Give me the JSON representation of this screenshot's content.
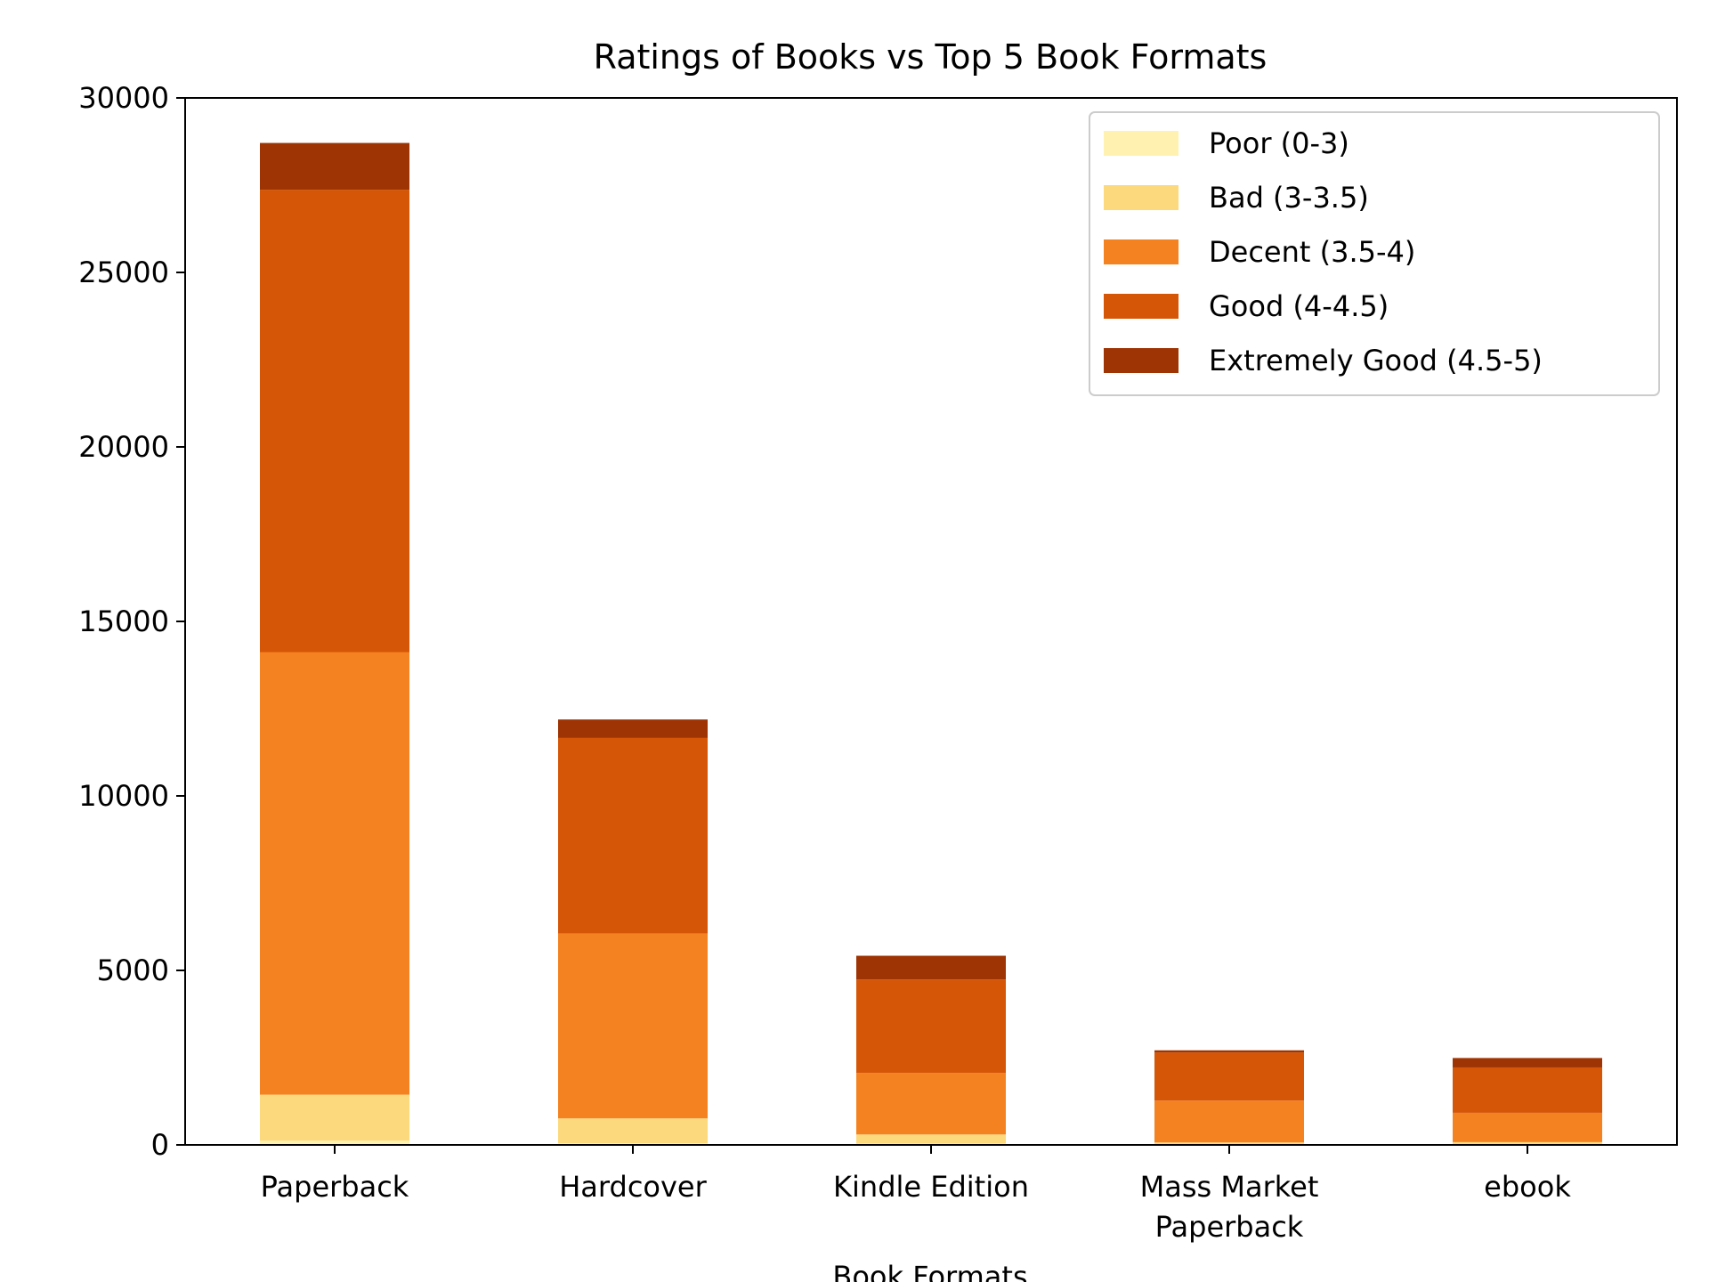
{
  "chart_data": {
    "type": "bar",
    "stacked": true,
    "title": "Ratings of Books vs Top 5 Book Formats",
    "xlabel": "Book Formats",
    "ylabel": "",
    "ylim": [
      0,
      30000
    ],
    "yticks": [
      0,
      5000,
      10000,
      15000,
      20000,
      25000,
      30000
    ],
    "categories": [
      "Paperback",
      "Hardcover",
      "Kindle Edition",
      "Mass Market\nPaperback",
      "ebook"
    ],
    "series": [
      {
        "name": "Poor (0-3)",
        "color": "#fff2b0",
        "values": [
          120,
          50,
          40,
          20,
          20
        ]
      },
      {
        "name": "Bad (3-3.5)",
        "color": "#fdd97e",
        "values": [
          1320,
          710,
          260,
          50,
          60
        ]
      },
      {
        "name": "Decent (3.5-4)",
        "color": "#f58220",
        "values": [
          12680,
          5300,
          1760,
          1200,
          840
        ]
      },
      {
        "name": "Good (4-4.5)",
        "color": "#d55607",
        "values": [
          13250,
          5600,
          2680,
          1380,
          1300
        ]
      },
      {
        "name": "Extremely Good (4.5-5)",
        "color": "#9e3404",
        "values": [
          1340,
          530,
          680,
          60,
          270
        ]
      }
    ],
    "legend": {
      "position": "top-right"
    },
    "grid": false
  }
}
